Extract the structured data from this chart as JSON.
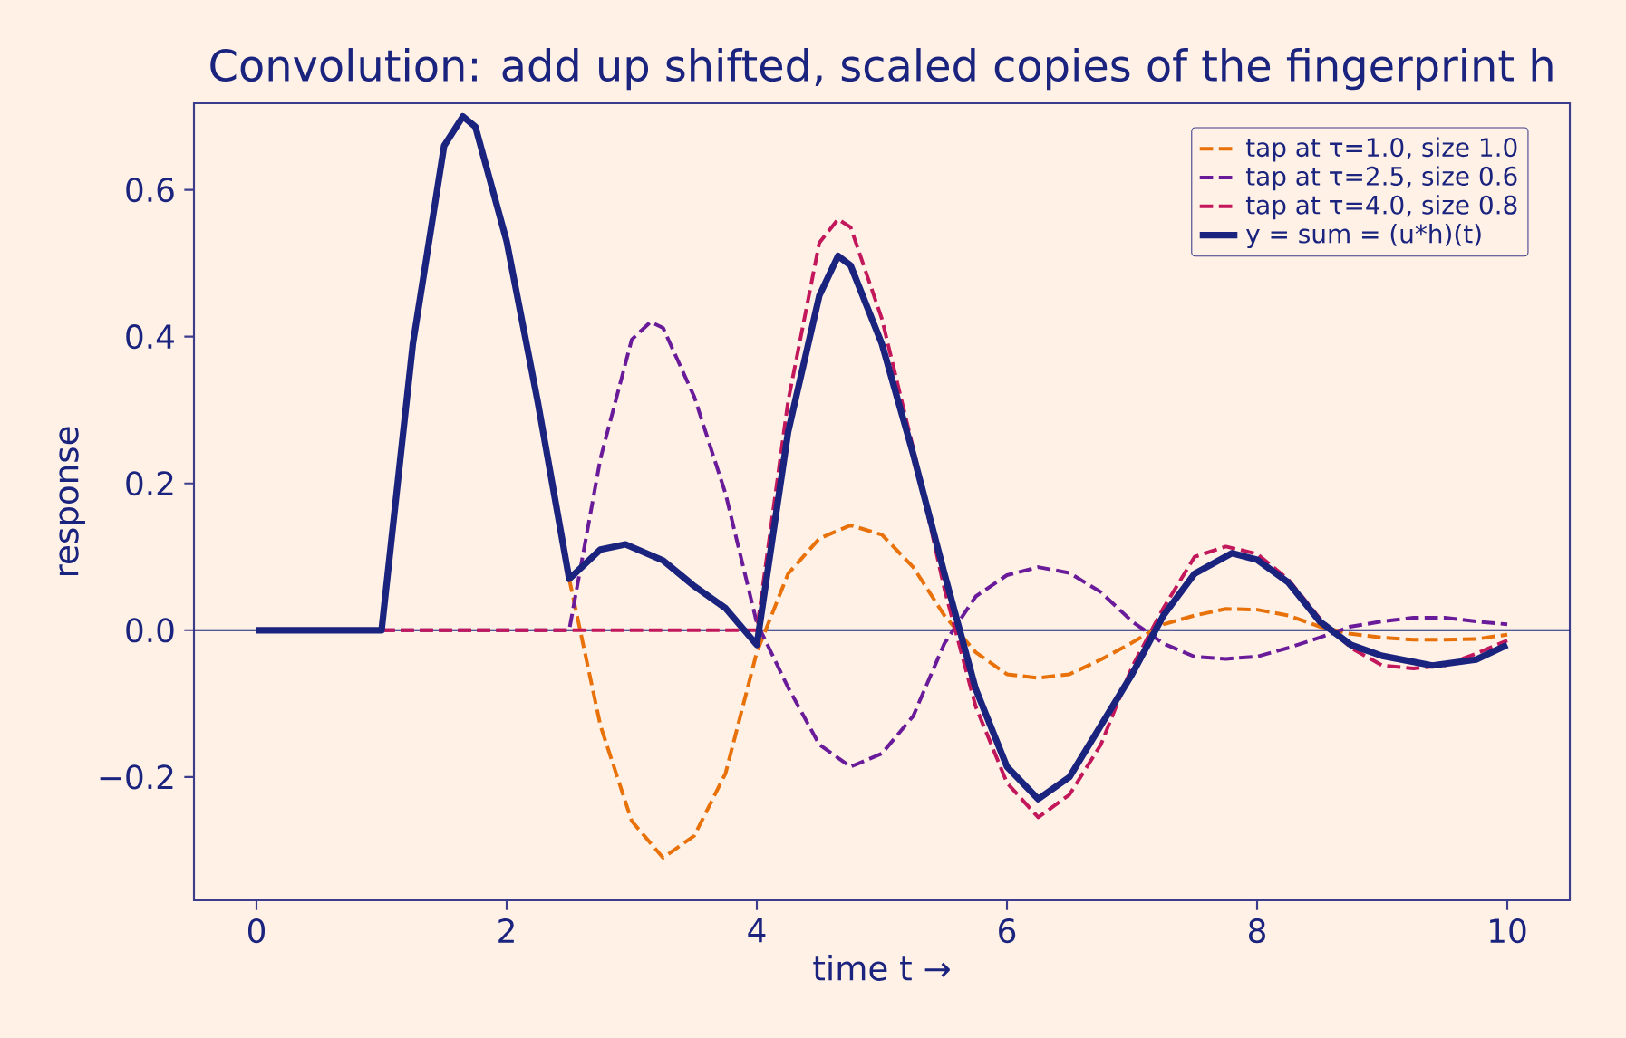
{
  "chart_data": {
    "type": "line",
    "title": "Convolution: add up shifted, scaled copies of the fingerprint h",
    "xlabel": "time t →",
    "ylabel": "response",
    "xlim": [
      -0.5,
      10.5
    ],
    "ylim": [
      -0.368,
      0.718
    ],
    "xticks": [
      0,
      2,
      4,
      6,
      8,
      10
    ],
    "yticks": [
      {
        "value": -0.2,
        "label": "−0.2"
      },
      {
        "value": 0,
        "label": "0.0"
      },
      {
        "value": 0.2,
        "label": "0.2"
      },
      {
        "value": 0.4,
        "label": "0.4"
      },
      {
        "value": 0.6,
        "label": "0.6"
      }
    ],
    "grid": false,
    "legend": "top right",
    "ref_lines": [
      {
        "axis": "y",
        "value": 0,
        "color": "#1a237e",
        "line_style": "solid"
      }
    ],
    "series": [
      {
        "name": "tap at τ=1.0, size 1.0",
        "color": "#e8710a",
        "line_style": "dashed",
        "x": [
          2.5,
          2.75,
          3,
          3.25,
          3.5,
          3.75,
          4,
          4.25,
          4.5,
          4.75,
          5,
          5.25,
          5.5,
          5.75,
          6,
          6.25,
          6.5,
          6.75,
          7,
          7.25,
          7.5,
          7.75,
          8,
          8.25,
          8.5,
          8.75,
          9,
          9.25,
          9.5,
          9.75,
          10
        ],
        "values": [
          0.07,
          -0.13,
          -0.26,
          -0.31,
          -0.28,
          -0.195,
          -0.03,
          0.077,
          0.125,
          0.143,
          0.13,
          0.086,
          0.02,
          -0.03,
          -0.06,
          -0.065,
          -0.06,
          -0.04,
          -0.017,
          0.008,
          0.02,
          0.029,
          0.028,
          0.02,
          0.005,
          -0.005,
          -0.01,
          -0.013,
          -0.013,
          -0.012,
          -0.006
        ]
      },
      {
        "name": "tap at τ=2.5, size 0.6",
        "color": "#6a1b9a",
        "line_style": "dashed",
        "x": [
          1,
          2,
          2.5,
          2.75,
          3,
          3.15,
          3.25,
          3.5,
          3.75,
          4,
          4.25,
          4.5,
          4.75,
          5,
          5.25,
          5.5,
          5.75,
          6,
          6.25,
          6.5,
          6.75,
          7,
          7.25,
          7.5,
          7.75,
          8,
          8.25,
          8.5,
          8.75,
          9,
          9.25,
          9.5,
          9.75,
          10
        ],
        "values": [
          0,
          0,
          0,
          0.234,
          0.396,
          0.42,
          0.412,
          0.318,
          0.186,
          0.01,
          -0.078,
          -0.156,
          -0.186,
          -0.168,
          -0.117,
          -0.018,
          0.046,
          0.075,
          0.086,
          0.078,
          0.052,
          0.012,
          -0.018,
          -0.036,
          -0.039,
          -0.036,
          -0.024,
          -0.01,
          0.005,
          0.012,
          0.017,
          0.017,
          0.012,
          0.008
        ]
      },
      {
        "name": "tap at τ=4.0, size 0.8",
        "color": "#c2185b",
        "line_style": "dashed",
        "x": [
          1,
          2,
          3,
          4,
          4.25,
          4.5,
          4.65,
          4.75,
          5,
          5.25,
          5.5,
          5.75,
          6,
          6.25,
          6.5,
          6.75,
          7,
          7.25,
          7.5,
          7.75,
          8,
          8.25,
          8.5,
          8.75,
          9,
          9.25,
          9.5,
          9.75,
          10
        ],
        "values": [
          0,
          0,
          0,
          0,
          0.312,
          0.528,
          0.56,
          0.549,
          0.424,
          0.248,
          0.056,
          -0.104,
          -0.208,
          -0.255,
          -0.224,
          -0.156,
          -0.05,
          0.03,
          0.1,
          0.114,
          0.104,
          0.069,
          0.016,
          -0.024,
          -0.048,
          -0.052,
          -0.048,
          -0.032,
          -0.014
        ]
      },
      {
        "name": "y = sum = (u*h)(t)",
        "color": "#1a237e",
        "line_style": "solid",
        "x": [
          0,
          0.5,
          1,
          1.25,
          1.5,
          1.65,
          1.75,
          2,
          2.25,
          2.5,
          2.75,
          2.95,
          3.25,
          3.5,
          3.75,
          4,
          4.25,
          4.5,
          4.65,
          4.75,
          5,
          5.25,
          5.5,
          5.75,
          6,
          6.25,
          6.5,
          6.75,
          7,
          7.25,
          7.5,
          7.8,
          8,
          8.25,
          8.5,
          8.75,
          9,
          9.4,
          9.75,
          10
        ],
        "values": [
          0,
          0,
          0,
          0.39,
          0.66,
          0.7,
          0.686,
          0.53,
          0.31,
          0.07,
          0.11,
          0.117,
          0.095,
          0.06,
          0.03,
          -0.02,
          0.27,
          0.456,
          0.51,
          0.497,
          0.39,
          0.24,
          0.077,
          -0.08,
          -0.186,
          -0.23,
          -0.2,
          -0.13,
          -0.06,
          0.02,
          0.077,
          0.105,
          0.096,
          0.065,
          0.012,
          -0.02,
          -0.035,
          -0.048,
          -0.04,
          -0.02
        ]
      }
    ]
  }
}
